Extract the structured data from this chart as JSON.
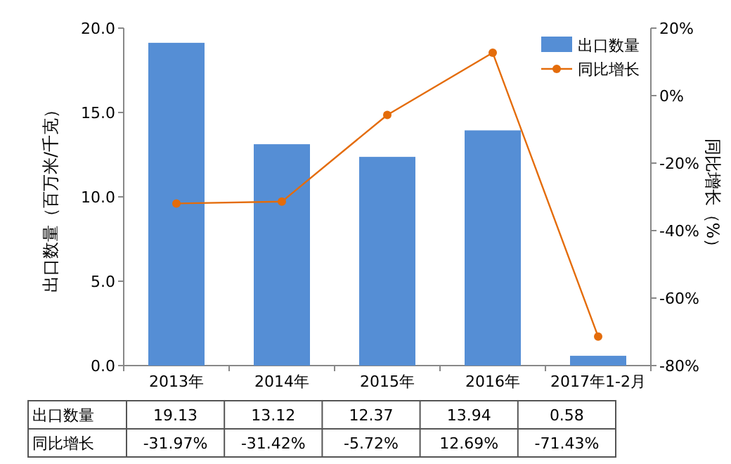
{
  "chart_data": {
    "type": "bar",
    "categories": [
      "2013年",
      "2014年",
      "2015年",
      "2016年",
      "2017年1-2月"
    ],
    "ylabel": "出口数量（百万米/千克）",
    "y2label": "同比增长（%）",
    "ylim": [
      0,
      20
    ],
    "yticks": [
      {
        "value": 0,
        "label": "0.0"
      },
      {
        "value": 5,
        "label": "5.0"
      },
      {
        "value": 10,
        "label": "10.0"
      },
      {
        "value": 15,
        "label": "15.0"
      },
      {
        "value": 20,
        "label": "20.0"
      }
    ],
    "y2lim": [
      -80,
      20
    ],
    "y2ticks": [
      {
        "value": -80,
        "label": "-80%"
      },
      {
        "value": -60,
        "label": "-60%"
      },
      {
        "value": -40,
        "label": "-40%"
      },
      {
        "value": -20,
        "label": "-20%"
      },
      {
        "value": 0,
        "label": "0%"
      },
      {
        "value": 20,
        "label": "20%"
      }
    ],
    "legend": "top right",
    "series": [
      {
        "name": "出口数量",
        "color": "#558ed5",
        "values": [
          19.13,
          13.12,
          12.37,
          13.94,
          0.58
        ],
        "value_labels": [
          "19.13",
          "13.12",
          "12.37",
          "13.94",
          "0.58"
        ]
      },
      {
        "name": "同比增长",
        "type": "line",
        "axis": "y2",
        "color": "#e46c0a",
        "marker": "circle",
        "values": [
          -31.97,
          -31.42,
          -5.72,
          12.69,
          -71.43
        ],
        "value_labels": [
          "-31.97%",
          "-31.42%",
          "-5.72%",
          "12.69%",
          "-71.43%"
        ]
      }
    ]
  }
}
